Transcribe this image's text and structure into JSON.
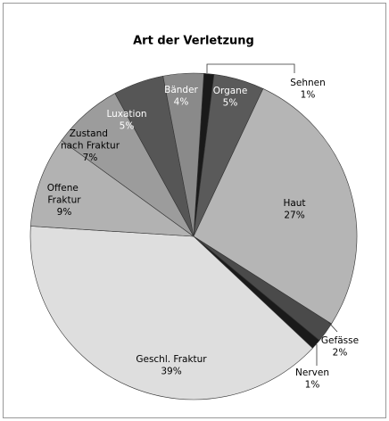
{
  "chart_data": {
    "type": "pie",
    "title": "Art der Verletzung",
    "categories": [
      "Sehnen",
      "Organe",
      "Haut",
      "Gefässe",
      "Nerven",
      "Geschl. Fraktur",
      "Offene Fraktur",
      "Zustand nach Fraktur",
      "Luxation",
      "Bänder"
    ],
    "values": [
      1,
      5,
      27,
      2,
      1,
      39,
      9,
      7,
      5,
      4
    ],
    "value_labels": [
      "1%",
      "5%",
      "27%",
      "2%",
      "1%",
      "39%",
      "9%",
      "7%",
      "5%",
      "4%"
    ],
    "colors": [
      "#1a1a1a",
      "#5a5a5a",
      "#b5b5b5",
      "#4a4a4a",
      "#1a1a1a",
      "#dedede",
      "#b2b2b2",
      "#9c9c9c",
      "#565656",
      "#8a8a8a"
    ]
  }
}
